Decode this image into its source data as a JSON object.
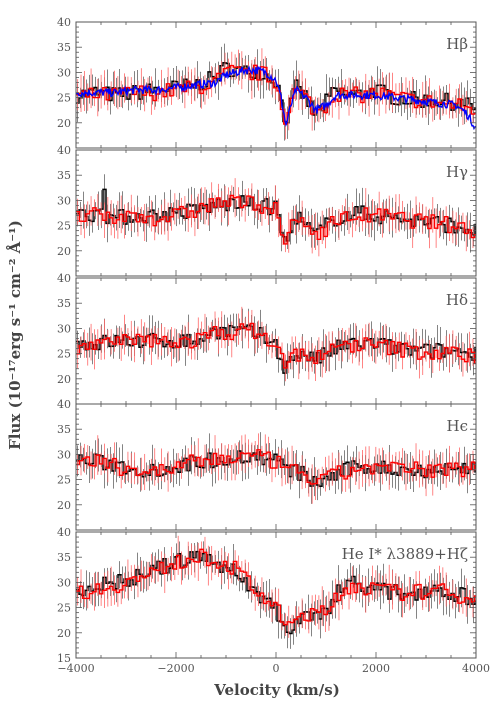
{
  "chart_data": {
    "type": "line",
    "xlabel": "Velocity (km/s)",
    "ylabel": "Flux (10⁻¹⁷erg s⁻¹ cm⁻² Å⁻¹)",
    "xlim": [
      -4000,
      4000
    ],
    "xticks": [
      -4000,
      -2000,
      0,
      2000,
      4000
    ],
    "xtick_labels": [
      "−4000",
      "−2000",
      "0",
      "2000",
      "4000"
    ],
    "panels": [
      {
        "label": "Hβ",
        "ylim": [
          15,
          40
        ],
        "yticks": [
          20,
          25,
          30,
          35,
          40
        ],
        "series": [
          {
            "color": "#000000",
            "style": "steps-with-errorbars",
            "x": [
              -4000,
              -3600,
              -3200,
              -2800,
              -2400,
              -2000,
              -1600,
              -1200,
              -1000,
              -800,
              -600,
              -400,
              -200,
              0,
              100,
              200,
              300,
              400,
              600,
              800,
              1000,
              1200,
              1400,
              1600,
              1800,
              2000,
              2400,
              2800,
              3200,
              3600,
              4000
            ],
            "y": [
              25.5,
              26,
              25.5,
              26,
              26.5,
              27,
              27.5,
              29,
              31,
              30.5,
              30,
              30.5,
              29.5,
              28.5,
              25,
              20,
              24,
              27,
              25,
              21.5,
              24,
              26.5,
              25.5,
              25.5,
              26,
              26.5,
              25,
              24.5,
              24.5,
              24,
              23
            ]
          },
          {
            "color": "#ff0000",
            "style": "steps-with-errorbars",
            "x": [
              -4000,
              -3600,
              -3200,
              -2800,
              -2400,
              -2000,
              -1600,
              -1200,
              -1000,
              -800,
              -600,
              -400,
              -200,
              0,
              100,
              200,
              300,
              400,
              600,
              800,
              1000,
              1200,
              1400,
              1600,
              1800,
              2000,
              2400,
              2800,
              3200,
              3600,
              4000
            ],
            "y": [
              25,
              25.5,
              25.5,
              26,
              26,
              26.5,
              27,
              28,
              30,
              30,
              29.5,
              30,
              29.5,
              28,
              25,
              20.5,
              23.5,
              26.5,
              25,
              22,
              23.5,
              26,
              25.5,
              25.5,
              25.5,
              26,
              25,
              24.5,
              24,
              23.5,
              22.5
            ]
          },
          {
            "color": "#0000ff",
            "style": "line",
            "x": [
              -4000,
              -3600,
              -3200,
              -2800,
              -2400,
              -2000,
              -1600,
              -1200,
              -1000,
              -800,
              -600,
              -400,
              -200,
              0,
              100,
              200,
              300,
              400,
              600,
              800,
              1000,
              1200,
              1400,
              1600,
              1800,
              2000,
              2400,
              2800,
              3200,
              3600,
              3800,
              4000
            ],
            "y": [
              26,
              26,
              26,
              26.5,
              26.5,
              27,
              27.5,
              28,
              29.5,
              30,
              30.5,
              30.5,
              30,
              28.5,
              25,
              19.5,
              23.5,
              26.5,
              25,
              22.5,
              23.5,
              25.5,
              25.5,
              25.5,
              25.5,
              25.5,
              25,
              24.5,
              24,
              23.5,
              22,
              19
            ]
          }
        ]
      },
      {
        "label": "Hγ",
        "ylim": [
          15,
          40
        ],
        "yticks": [
          20,
          25,
          30,
          35,
          40
        ],
        "series": [
          {
            "color": "#000000",
            "style": "steps-with-errorbars",
            "x": [
              -4000,
              -3700,
              -3500,
              -3450,
              -3400,
              -3200,
              -2800,
              -2400,
              -2000,
              -1600,
              -1200,
              -800,
              -400,
              0,
              100,
              200,
              300,
              400,
              600,
              800,
              1000,
              1200,
              1600,
              2000,
              2400,
              2800,
              3200,
              3600,
              4000
            ],
            "y": [
              27,
              27,
              28,
              37,
              27,
              26.5,
              27,
              27,
              27.5,
              28,
              29,
              29.5,
              29,
              28.5,
              24.5,
              21,
              24,
              27,
              25,
              23,
              25,
              26.5,
              27.5,
              27,
              26.5,
              26,
              25.5,
              25,
              24
            ]
          },
          {
            "color": "#ff0000",
            "style": "steps-with-errorbars",
            "x": [
              -4000,
              -3700,
              -3500,
              -3400,
              -3200,
              -2800,
              -2400,
              -2000,
              -1600,
              -1200,
              -800,
              -400,
              0,
              100,
              200,
              300,
              400,
              600,
              800,
              1000,
              1200,
              1600,
              2000,
              2400,
              2800,
              3200,
              3600,
              4000
            ],
            "y": [
              26.5,
              27,
              27,
              26,
              26.5,
              27,
              26.5,
              27,
              28,
              29.5,
              29.5,
              29.5,
              28,
              24,
              21.5,
              24,
              26.5,
              25,
              23.5,
              24.5,
              26,
              27,
              27,
              26.5,
              26,
              25.5,
              25,
              24
            ]
          }
        ]
      },
      {
        "label": "Hδ",
        "ylim": [
          15,
          40
        ],
        "yticks": [
          20,
          25,
          30,
          35,
          40
        ],
        "series": [
          {
            "color": "#000000",
            "style": "steps-with-errorbars",
            "x": [
              -4000,
              -3600,
              -3200,
              -2800,
              -2400,
              -2000,
              -1600,
              -1200,
              -800,
              -400,
              -200,
              0,
              100,
              200,
              400,
              600,
              800,
              1000,
              1200,
              1600,
              2000,
              2400,
              2800,
              3200,
              3600,
              4000
            ],
            "y": [
              27,
              27,
              27.5,
              27.5,
              27.5,
              27.5,
              27.5,
              29.5,
              29.5,
              29,
              28,
              27,
              24,
              22,
              25,
              25,
              23.5,
              25,
              26,
              27,
              27,
              26,
              25.5,
              25.5,
              25.5,
              25
            ]
          },
          {
            "color": "#ff0000",
            "style": "steps-with-errorbars",
            "x": [
              -4000,
              -3600,
              -3200,
              -2800,
              -2400,
              -2000,
              -1600,
              -1200,
              -800,
              -400,
              -200,
              0,
              100,
              200,
              400,
              600,
              800,
              1000,
              1200,
              1600,
              2000,
              2400,
              2800,
              3200,
              3600,
              4000
            ],
            "y": [
              26.5,
              27,
              27,
              27.5,
              27.5,
              27.5,
              27.5,
              29,
              29.5,
              29.5,
              28,
              26.5,
              24.5,
              22.5,
              25,
              25,
              24,
              25,
              26,
              27,
              26.5,
              26,
              25.5,
              25,
              25,
              24.5
            ]
          }
        ]
      },
      {
        "label": "Hϵ",
        "ylim": [
          15,
          40
        ],
        "yticks": [
          20,
          25,
          30,
          35,
          40
        ],
        "series": [
          {
            "color": "#000000",
            "style": "steps-with-errorbars",
            "x": [
              -4000,
              -3600,
              -3200,
              -2800,
              -2400,
              -2000,
              -1600,
              -1200,
              -800,
              -400,
              0,
              200,
              400,
              600,
              800,
              1000,
              1200,
              1600,
              2000,
              2400,
              2800,
              3200,
              3600,
              4000
            ],
            "y": [
              29,
              28.5,
              28,
              27,
              27,
              27.5,
              28.5,
              29,
              29.5,
              29.5,
              29,
              27,
              26.5,
              26,
              24,
              25,
              26,
              27.5,
              27.5,
              27,
              27,
              27,
              27,
              27.5
            ]
          },
          {
            "color": "#ff0000",
            "style": "steps-with-errorbars",
            "x": [
              -4000,
              -3600,
              -3200,
              -2800,
              -2400,
              -2000,
              -1600,
              -1200,
              -800,
              -400,
              0,
              200,
              400,
              600,
              800,
              1000,
              1200,
              1600,
              2000,
              2400,
              2800,
              3200,
              3600,
              4000
            ],
            "y": [
              28.5,
              28.5,
              27.5,
              27,
              26.5,
              27.5,
              28.5,
              29,
              29.5,
              29.5,
              28.5,
              27,
              26.5,
              26,
              24.5,
              25,
              26,
              27,
              27.5,
              27,
              27,
              27,
              27,
              27.5
            ]
          }
        ]
      },
      {
        "label": "He I* λ3889+Hζ",
        "ylim": [
          15,
          40
        ],
        "yticks": [
          15,
          20,
          25,
          30,
          35,
          40
        ],
        "series": [
          {
            "color": "#000000",
            "style": "steps-with-errorbars",
            "x": [
              -4000,
              -3600,
              -3200,
              -2800,
              -2400,
              -2000,
              -1600,
              -1400,
              -1200,
              -800,
              -400,
              0,
              200,
              400,
              600,
              800,
              1000,
              1200,
              1400,
              1600,
              2000,
              2400,
              2800,
              3200,
              3600,
              4000
            ],
            "y": [
              28,
              29.5,
              30,
              31,
              32.5,
              34,
              35,
              35,
              34,
              32,
              28,
              25,
              20,
              22,
              24.5,
              22.5,
              24,
              28,
              30,
              30,
              28.5,
              28,
              28,
              29,
              27.5,
              27
            ]
          },
          {
            "color": "#ff0000",
            "style": "steps-with-errorbars",
            "x": [
              -4000,
              -3600,
              -3200,
              -2800,
              -2400,
              -2000,
              -1600,
              -1400,
              -1200,
              -800,
              -400,
              0,
              200,
              400,
              600,
              800,
              1000,
              1200,
              1400,
              1600,
              2000,
              2400,
              2800,
              3200,
              3600,
              4000
            ],
            "y": [
              28,
              28.5,
              29.5,
              30.5,
              32,
              34,
              35,
              35,
              34.5,
              32.5,
              28.5,
              25,
              21,
              22.5,
              24,
              23.5,
              24,
              27,
              29,
              29.5,
              28.5,
              28,
              28,
              28.5,
              27.5,
              27
            ]
          }
        ]
      }
    ]
  }
}
